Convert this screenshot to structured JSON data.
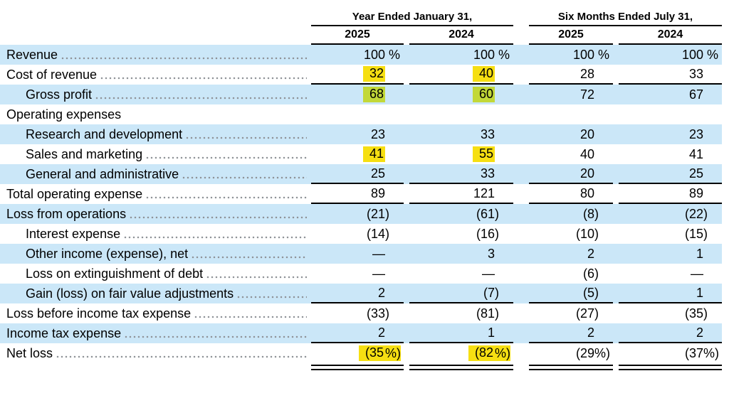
{
  "table": {
    "header": {
      "groups": [
        {
          "label": "Year Ended January 31,",
          "years": [
            "2025",
            "2024"
          ]
        },
        {
          "label": "Six Months Ended July 31,",
          "years": [
            "2025",
            "2024"
          ]
        }
      ]
    },
    "rows": [
      {
        "label": "Revenue",
        "indent": 0,
        "leader": true,
        "stripe": true,
        "values": [
          "100 %",
          "100 %",
          "100 %",
          "100 %"
        ],
        "highlight": [
          false,
          false,
          false,
          false
        ],
        "rule_below": "none"
      },
      {
        "label": "Cost of revenue",
        "indent": 0,
        "leader": true,
        "stripe": false,
        "values": [
          "32",
          "40",
          "28",
          "33"
        ],
        "highlight": [
          true,
          true,
          false,
          false
        ],
        "rule_below": "single"
      },
      {
        "label": "Gross profit",
        "indent": 1,
        "leader": true,
        "stripe": true,
        "values": [
          "68",
          "60",
          "72",
          "67"
        ],
        "highlight": [
          true,
          true,
          false,
          false
        ],
        "rule_below": "none"
      },
      {
        "label": "Operating expenses",
        "indent": 0,
        "leader": false,
        "stripe": false,
        "values": [
          "",
          "",
          "",
          ""
        ],
        "highlight": [
          false,
          false,
          false,
          false
        ],
        "rule_below": "none"
      },
      {
        "label": "Research and development",
        "indent": 1,
        "leader": true,
        "stripe": true,
        "values": [
          "23",
          "33",
          "20",
          "23"
        ],
        "highlight": [
          false,
          false,
          false,
          false
        ],
        "rule_below": "none"
      },
      {
        "label": "Sales and marketing",
        "indent": 1,
        "leader": true,
        "stripe": false,
        "values": [
          "41",
          "55",
          "40",
          "41"
        ],
        "highlight": [
          true,
          true,
          false,
          false
        ],
        "rule_below": "none"
      },
      {
        "label": "General and administrative",
        "indent": 1,
        "leader": true,
        "stripe": true,
        "values": [
          "25",
          "33",
          "20",
          "25"
        ],
        "highlight": [
          false,
          false,
          false,
          false
        ],
        "rule_below": "single"
      },
      {
        "label": "Total operating expense",
        "indent": 0,
        "leader": true,
        "stripe": false,
        "values": [
          "89",
          "121",
          "80",
          "89"
        ],
        "highlight": [
          false,
          false,
          false,
          false
        ],
        "rule_below": "single"
      },
      {
        "label": "Loss from operations",
        "indent": 0,
        "leader": true,
        "stripe": true,
        "values": [
          "(21)",
          "(61)",
          "(8)",
          "(22)"
        ],
        "highlight": [
          false,
          false,
          false,
          false
        ],
        "rule_below": "none"
      },
      {
        "label": "Interest expense",
        "indent": 1,
        "leader": true,
        "stripe": false,
        "values": [
          "(14)",
          "(16)",
          "(10)",
          "(15)"
        ],
        "highlight": [
          false,
          false,
          false,
          false
        ],
        "rule_below": "none"
      },
      {
        "label": "Other income (expense), net",
        "indent": 1,
        "leader": true,
        "stripe": true,
        "values": [
          "—",
          "3",
          "2",
          "1"
        ],
        "highlight": [
          false,
          false,
          false,
          false
        ],
        "rule_below": "none"
      },
      {
        "label": "Loss on extinguishment of debt",
        "indent": 1,
        "leader": true,
        "stripe": false,
        "values": [
          "—",
          "—",
          "(6)",
          "—"
        ],
        "highlight": [
          false,
          false,
          false,
          false
        ],
        "rule_below": "none"
      },
      {
        "label": "Gain (loss) on fair value adjustments",
        "indent": 1,
        "leader": true,
        "stripe": true,
        "values": [
          "2",
          "(7)",
          "(5)",
          "1"
        ],
        "highlight": [
          false,
          false,
          false,
          false
        ],
        "rule_below": "single"
      },
      {
        "label": "Loss before income tax expense",
        "indent": 0,
        "leader": true,
        "stripe": false,
        "values": [
          "(33)",
          "(81)",
          "(27)",
          "(35)"
        ],
        "highlight": [
          false,
          false,
          false,
          false
        ],
        "rule_below": "none"
      },
      {
        "label": "Income tax expense",
        "indent": 0,
        "leader": true,
        "stripe": true,
        "values": [
          "2",
          "1",
          "2",
          "2"
        ],
        "highlight": [
          false,
          false,
          false,
          false
        ],
        "rule_below": "single"
      },
      {
        "label": "Net loss",
        "indent": 0,
        "leader": true,
        "stripe": false,
        "values": [
          "(35%)",
          "(82%)",
          "(29%)",
          "(37%)"
        ],
        "highlight": [
          true,
          true,
          false,
          false
        ],
        "rule_below": "double"
      }
    ],
    "colors": {
      "stripe": "#cbe7f8",
      "highlight": "#f6df12",
      "highlight_on_stripe": "#c2d838",
      "rule": "#000000",
      "leader_dot": "#8f9398",
      "text": "#000000"
    }
  }
}
